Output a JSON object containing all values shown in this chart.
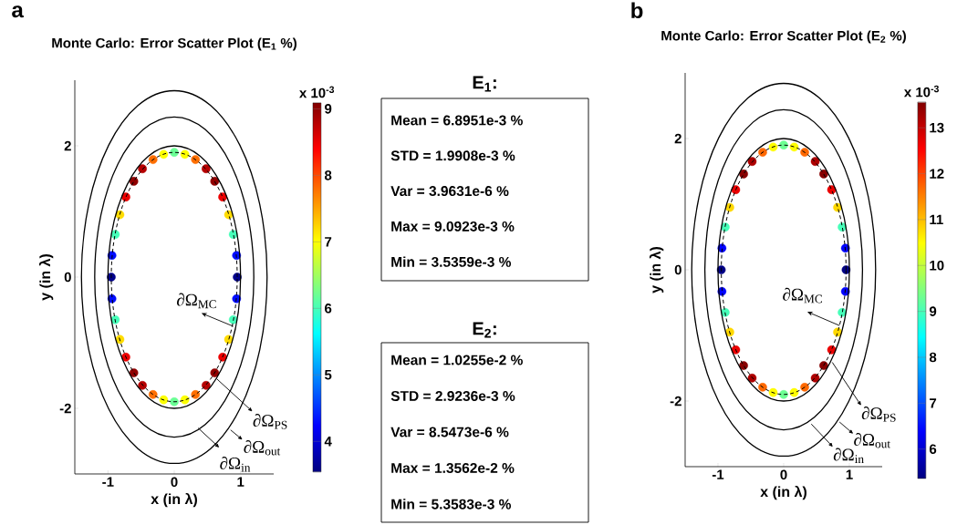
{
  "chart_data": [
    {
      "type": "scatter",
      "title": "Monte Carlo: Error Scatter Plot (E$_{1}$ %)",
      "xlabel": "x (in λ)",
      "ylabel": "y (in λ)",
      "clabel": "x 10$^{-3}$",
      "xlim": [
        -1.5,
        1.5
      ],
      "ylim": [
        -3,
        3
      ],
      "xticks": [
        -1,
        0,
        1
      ],
      "yticks": [
        -2,
        0,
        2
      ],
      "clim": [
        3.54,
        9.09
      ],
      "cticks": [
        4,
        5,
        6,
        7,
        8,
        9
      ],
      "annotations": [
        "a",
        "∂Ω$_{MC}$",
        "∂Ω$_{PS}$",
        "∂Ω$_{out}$",
        "∂Ω$_{in}$"
      ],
      "series": [
        {
          "type": "scatter",
          "marker": "circle",
          "x": [
            0.95,
            0.94,
            0.89,
            0.82,
            0.73,
            0.61,
            0.48,
            0.32,
            0.16,
            0,
            -0.16,
            -0.32,
            -0.48,
            -0.61,
            -0.73,
            -0.82,
            -0.89,
            -0.94,
            -0.95,
            -0.94,
            -0.89,
            -0.82,
            -0.73,
            -0.61,
            -0.48,
            -0.32,
            -0.16,
            0,
            0.16,
            0.32,
            0.48,
            0.61,
            0.73,
            0.82,
            0.89,
            0.94
          ],
          "values": [
            0,
            0.33,
            0.65,
            0.95,
            1.22,
            1.46,
            1.65,
            1.79,
            1.87,
            1.9,
            1.87,
            1.79,
            1.65,
            1.46,
            1.22,
            0.95,
            0.65,
            0.33,
            0,
            -0.33,
            -0.65,
            -0.95,
            -1.22,
            -1.46,
            -1.65,
            -1.79,
            -1.87,
            -1.9,
            -1.87,
            -1.79,
            -1.65,
            -1.46,
            -1.22,
            -0.95,
            -0.65,
            -0.33
          ],
          "cvalues": [
            3.6,
            4.3,
            6.0,
            7.2,
            8.5,
            9.0,
            8.8,
            7.8,
            7.0,
            6.2,
            7.0,
            7.8,
            8.8,
            9.0,
            8.5,
            7.2,
            6.0,
            4.3,
            3.6,
            4.3,
            6.0,
            7.2,
            8.5,
            9.0,
            8.8,
            7.8,
            7.0,
            6.2,
            7.0,
            7.8,
            8.8,
            9.0,
            8.5,
            7.2,
            6.0,
            4.3
          ]
        }
      ]
    },
    {
      "type": "other",
      "title": "E$_{1}$:",
      "annotations": [
        "Mean = 6.8951e-3 %",
        "STD = 1.9908e-3 %",
        "Var = 3.9631e-6 %",
        "Max = 9.0923e-3 %",
        "Min = 3.5359e-3 %"
      ]
    },
    {
      "type": "other",
      "title": "E$_{2}$:",
      "annotations": [
        "Mean = 1.0255e-2 %",
        "STD = 2.9236e-3 %",
        "Var = 8.5473e-6 %",
        "Max = 1.3562e-2 %",
        "Min = 5.3583e-3 %"
      ]
    },
    {
      "type": "scatter",
      "title": "Monte Carlo: Error Scatter Plot (E$_{2}$ %)",
      "xlabel": "x (in λ)",
      "ylabel": "y (in λ)",
      "clabel": "x 10$^{-3}$",
      "xlim": [
        -1.5,
        1.5
      ],
      "ylim": [
        -3,
        3
      ],
      "xticks": [
        -1,
        0,
        1
      ],
      "yticks": [
        -2,
        0,
        2
      ],
      "clim": [
        5.36,
        13.56
      ],
      "cticks": [
        6,
        7,
        8,
        9,
        10,
        11,
        12,
        13
      ],
      "annotations": [
        "b",
        "∂Ω$_{MC}$",
        "∂Ω$_{PS}$",
        "∂Ω$_{out}$",
        "∂Ω$_{in}$"
      ],
      "series": [
        {
          "type": "scatter",
          "marker": "circle",
          "x": [
            0.95,
            0.94,
            0.89,
            0.82,
            0.73,
            0.61,
            0.48,
            0.32,
            0.16,
            0,
            -0.16,
            -0.32,
            -0.48,
            -0.61,
            -0.73,
            -0.82,
            -0.89,
            -0.94,
            -0.95,
            -0.94,
            -0.89,
            -0.82,
            -0.73,
            -0.61,
            -0.48,
            -0.32,
            -0.16,
            0,
            0.16,
            0.32,
            0.48,
            0.61,
            0.73,
            0.82,
            0.89,
            0.94
          ],
          "values": [
            0,
            0.33,
            0.65,
            0.95,
            1.22,
            1.46,
            1.65,
            1.79,
            1.87,
            1.9,
            1.87,
            1.79,
            1.65,
            1.46,
            1.22,
            0.95,
            0.65,
            0.33,
            0,
            -0.33,
            -0.65,
            -0.95,
            -1.22,
            -1.46,
            -1.65,
            -1.79,
            -1.87,
            -1.9,
            -1.87,
            -1.79,
            -1.65,
            -1.46,
            -1.22,
            -0.95,
            -0.65,
            -0.33
          ],
          "cvalues": [
            5.4,
            6.4,
            9.0,
            10.8,
            12.7,
            13.5,
            13.2,
            11.7,
            10.5,
            9.3,
            10.5,
            11.7,
            13.2,
            13.5,
            12.7,
            10.8,
            9.0,
            6.4,
            5.4,
            6.4,
            9.0,
            10.8,
            12.7,
            13.5,
            13.2,
            11.7,
            10.5,
            9.3,
            10.5,
            11.7,
            13.2,
            13.5,
            12.7,
            10.8,
            9.0,
            6.4
          ]
        }
      ]
    }
  ]
}
